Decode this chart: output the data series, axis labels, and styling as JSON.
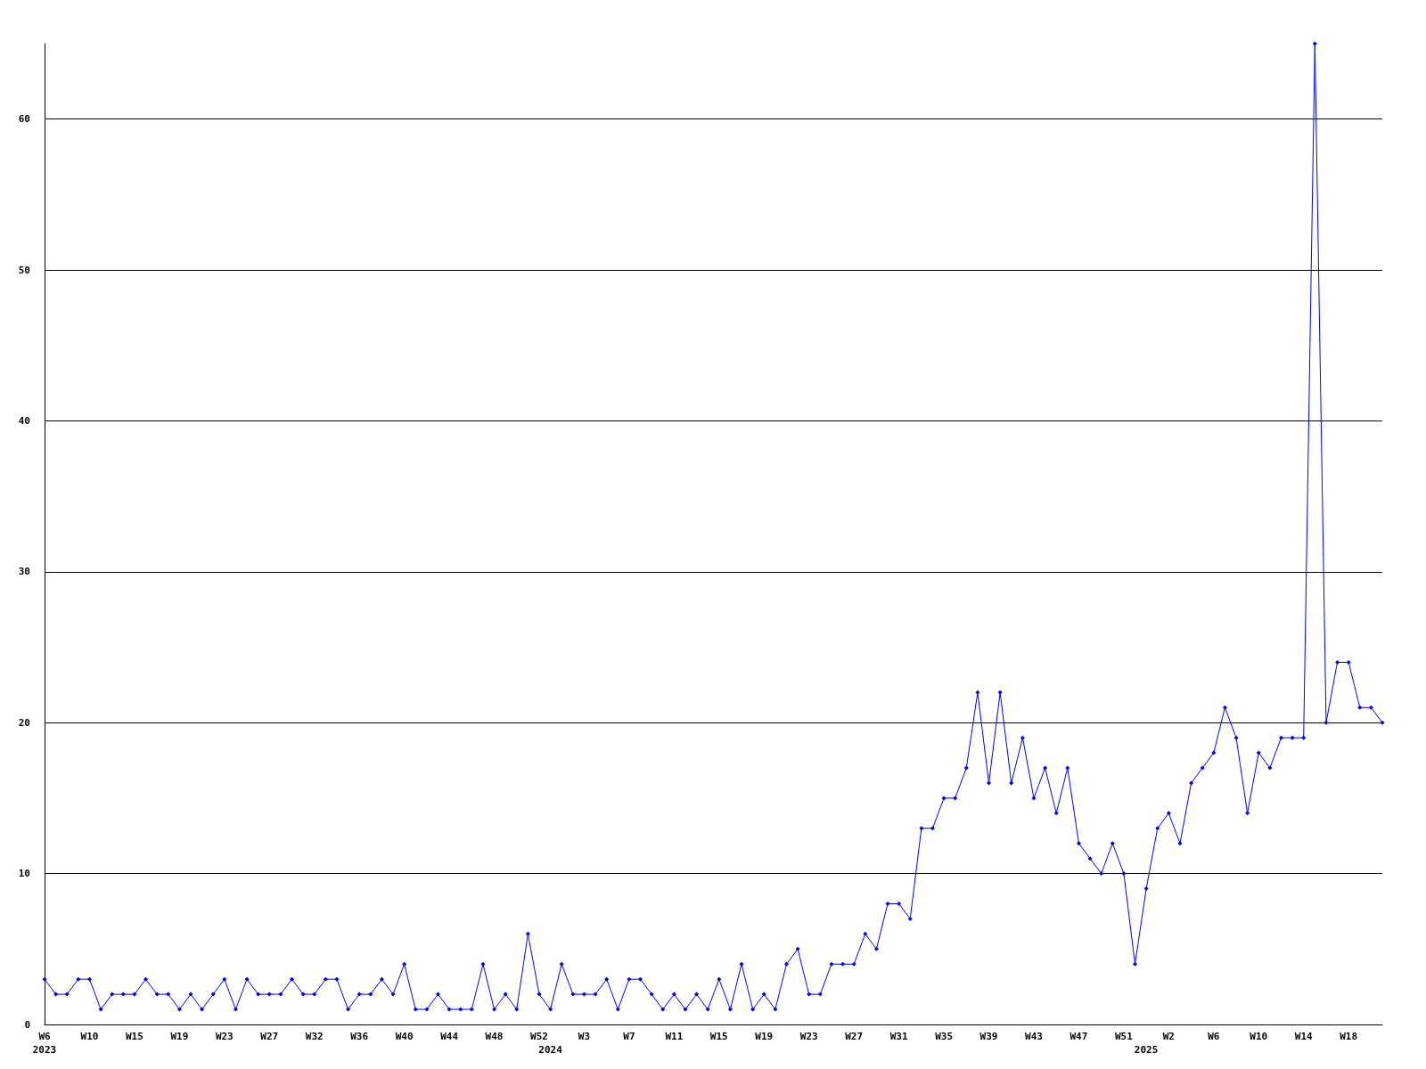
{
  "chart_data": {
    "type": "line",
    "categories": [
      "W6\n2023",
      null,
      null,
      null,
      "W10",
      null,
      null,
      null,
      "W15",
      null,
      null,
      null,
      "W19",
      null,
      null,
      null,
      "W23",
      null,
      null,
      null,
      "W27",
      null,
      null,
      null,
      "W32",
      null,
      null,
      null,
      "W36",
      null,
      null,
      null,
      "W40",
      null,
      null,
      null,
      "W44",
      null,
      null,
      null,
      "W48",
      null,
      null,
      null,
      "W52",
      "\n2024",
      null,
      null,
      "W3",
      null,
      null,
      null,
      "W7",
      null,
      null,
      null,
      "W11",
      null,
      null,
      null,
      "W15",
      null,
      null,
      null,
      "W19",
      null,
      null,
      null,
      "W23",
      null,
      null,
      null,
      "W27",
      null,
      null,
      null,
      "W31",
      null,
      null,
      null,
      "W35",
      null,
      null,
      null,
      "W39",
      null,
      null,
      null,
      "W43",
      null,
      null,
      null,
      "W47",
      null,
      null,
      null,
      "W51",
      null,
      "\n2025",
      null,
      "W2",
      null,
      null,
      null,
      "W6",
      null,
      null,
      null,
      "W10",
      null,
      null,
      null,
      "W14",
      null,
      null,
      null,
      "W18",
      null,
      null,
      null
    ],
    "series": [
      {
        "color": "#0000ff",
        "values": [
          3,
          2,
          2,
          3,
          3,
          1,
          2,
          2,
          2,
          3,
          2,
          2,
          1,
          2,
          1,
          2,
          3,
          1,
          3,
          2,
          2,
          2,
          3,
          2,
          2,
          3,
          3,
          1,
          2,
          2,
          3,
          2,
          4,
          1,
          1,
          2,
          1,
          1,
          1,
          4,
          1,
          2,
          1,
          6,
          2,
          1,
          4,
          2,
          2,
          2,
          3,
          1,
          3,
          3,
          2,
          1,
          2,
          1,
          2,
          1,
          3,
          1,
          4,
          1,
          2,
          1,
          4,
          5,
          2,
          2,
          4,
          4,
          4,
          6,
          5,
          8,
          8,
          7,
          13,
          13,
          15,
          15,
          17,
          22,
          16,
          22,
          16,
          19,
          15,
          17,
          14,
          17,
          12,
          11,
          10,
          12,
          10,
          4,
          9,
          13,
          14,
          12,
          16,
          17,
          18,
          21,
          19,
          14,
          18,
          17,
          19,
          19,
          19,
          65,
          20,
          24,
          24,
          21,
          21,
          20
        ]
      }
    ],
    "ylim": [
      0,
      65
    ],
    "yticks": [
      0,
      10,
      20,
      30,
      40,
      50,
      60
    ],
    "grid": "y",
    "marker": "diamond",
    "line_style": "solid"
  }
}
